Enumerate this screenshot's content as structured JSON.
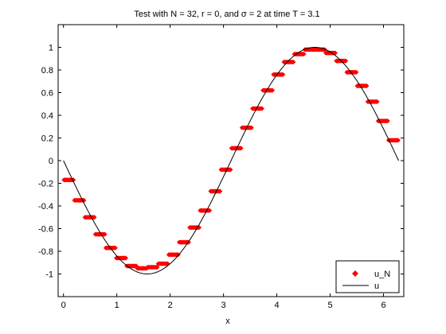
{
  "chart_data": {
    "type": "line",
    "title": "Test with N = 32, r = 0, and σ = 2 at time T = 3.1",
    "xlabel": "x",
    "ylabel": "",
    "xlim": [
      -0.1,
      6.38
    ],
    "ylim": [
      -1.2,
      1.2
    ],
    "xticks": [
      0,
      1,
      2,
      3,
      4,
      5,
      6
    ],
    "yticks": [
      -1,
      -0.8,
      -0.6,
      -0.4,
      -0.2,
      0,
      0.2,
      0.4,
      0.6,
      0.8,
      1
    ],
    "xtick_labels": [
      "0",
      "1",
      "2",
      "3",
      "4",
      "5",
      "6"
    ],
    "ytick_labels": [
      "-1",
      "-0.8",
      "-0.6",
      "-0.4",
      "-0.2",
      "0",
      "0.2",
      "0.4",
      "0.6",
      "0.8",
      "1"
    ],
    "grid": false,
    "legend_position": "bottom-right",
    "colors": {
      "u_N": "#ff0000",
      "u": "#000000",
      "axes": "#000000",
      "background": "#ffffff"
    },
    "series": [
      {
        "name": "u_N",
        "style": "marker",
        "points_per_cell": 11,
        "cell_width": 0.19635,
        "values": [
          -0.17,
          -0.35,
          -0.5,
          -0.65,
          -0.77,
          -0.86,
          -0.93,
          -0.95,
          -0.94,
          -0.91,
          -0.83,
          -0.72,
          -0.59,
          -0.44,
          -0.27,
          -0.08,
          0.11,
          0.29,
          0.46,
          0.62,
          0.76,
          0.87,
          0.94,
          0.98,
          0.98,
          0.95,
          0.88,
          0.78,
          0.66,
          0.52,
          0.35,
          0.18
        ]
      },
      {
        "name": "u",
        "style": "line",
        "function": "-sin(x)",
        "domain": [
          0,
          6.2832
        ]
      }
    ]
  }
}
